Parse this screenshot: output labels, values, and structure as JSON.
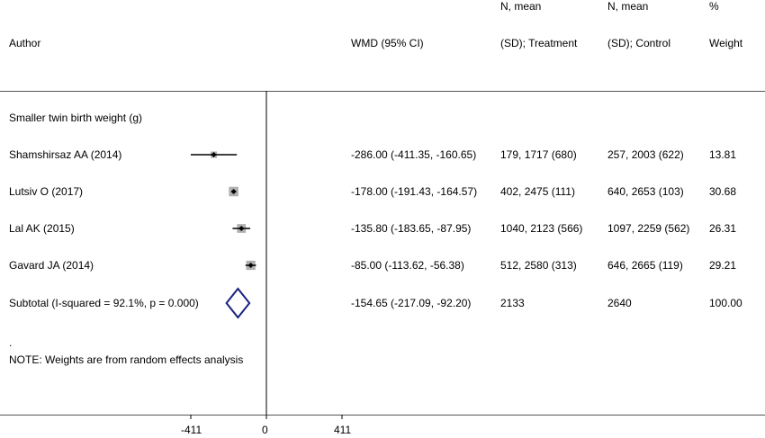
{
  "header": {
    "author": "Author",
    "wmd": "WMD (95% CI)",
    "treatment_line1": "N, mean",
    "treatment_line2": "(SD); Treatment",
    "control_line1": "N, mean",
    "control_line2": "(SD); Control",
    "weight_line1": "%",
    "weight_line2": "Weight"
  },
  "group_label": "Smaller twin birth weight (g)",
  "note_dot": ".",
  "note": "NOTE: Weights are from random effects analysis",
  "chart_data": {
    "type": "forest",
    "xlabel": "",
    "xticks": [
      -411,
      0,
      411
    ],
    "null_line": 0,
    "studies": [
      {
        "author": "Shamshirsaz AA (2014)",
        "wmd": -286.0,
        "lower": -411.35,
        "upper": -160.65,
        "wmd_text": "-286.00 (-411.35, -160.65)",
        "treatment": "179, 1717 (680)",
        "control": "257, 2003 (622)",
        "weight": 13.81,
        "weight_text": "13.81"
      },
      {
        "author": "Lutsiv O (2017)",
        "wmd": -178.0,
        "lower": -191.43,
        "upper": -164.57,
        "wmd_text": "-178.00 (-191.43, -164.57)",
        "treatment": "402, 2475 (111)",
        "control": "640, 2653 (103)",
        "weight": 30.68,
        "weight_text": "30.68"
      },
      {
        "author": "Lal AK (2015)",
        "wmd": -135.8,
        "lower": -183.65,
        "upper": -87.95,
        "wmd_text": "-135.80 (-183.65, -87.95)",
        "treatment": "1040, 2123 (566)",
        "control": "1097, 2259 (562)",
        "weight": 26.31,
        "weight_text": "26.31"
      },
      {
        "author": "Gavard JA (2014)",
        "wmd": -85.0,
        "lower": -113.62,
        "upper": -56.38,
        "wmd_text": "-85.00 (-113.62, -56.38)",
        "treatment": "512, 2580 (313)",
        "control": "646, 2665 (119)",
        "weight": 29.21,
        "weight_text": "29.21"
      }
    ],
    "subtotal": {
      "label": "Subtotal  (I-squared = 92.1%, p = 0.000)",
      "wmd": -154.65,
      "lower": -217.09,
      "upper": -92.2,
      "wmd_text": "-154.65 (-217.09, -92.20)",
      "treatment": "2133",
      "control": "2640",
      "weight_text": "100.00"
    },
    "colors": {
      "marker": "#000000",
      "box": "#b0b0b0",
      "diamond": "#1a237e",
      "line": "#000000"
    }
  }
}
